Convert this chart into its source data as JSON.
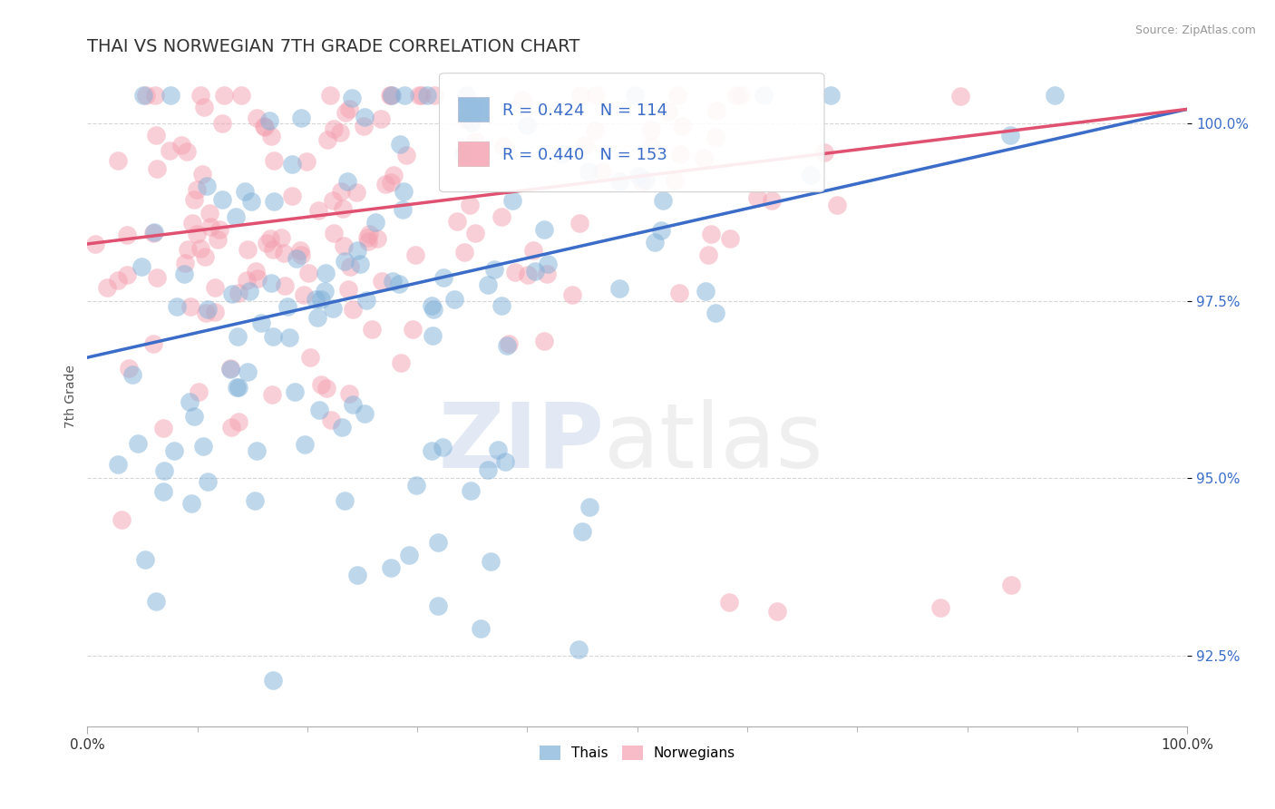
{
  "title": "THAI VS NORWEGIAN 7TH GRADE CORRELATION CHART",
  "source_text": "Source: ZipAtlas.com",
  "ylabel": "7th Grade",
  "x_min": 0.0,
  "x_max": 100.0,
  "y_min": 91.5,
  "y_max": 100.8,
  "yticks": [
    92.5,
    95.0,
    97.5,
    100.0
  ],
  "ytick_labels": [
    "92.5%",
    "95.0%",
    "97.5%",
    "100.0%"
  ],
  "xtick_positions": [
    0.0,
    100.0
  ],
  "xtick_labels": [
    "0.0%",
    "100.0%"
  ],
  "thai_R": 0.424,
  "thai_N": 114,
  "norwegian_R": 0.44,
  "norwegian_N": 153,
  "thai_color": "#7EB0D9",
  "norwegian_color": "#F4A0B0",
  "thai_line_color": "#3A6CC8",
  "norwegian_line_color": "#E05070",
  "background_color": "#FFFFFF",
  "grid_color": "#CCCCCC",
  "title_color": "#333333",
  "tick_color": "#3A6CC8",
  "source_color": "#999999",
  "title_fontsize": 14,
  "tick_fontsize": 11,
  "ylabel_fontsize": 10,
  "legend_fontsize": 13,
  "watermark_zip_color": "#C0D0E8",
  "watermark_atlas_color": "#D8D8D8"
}
